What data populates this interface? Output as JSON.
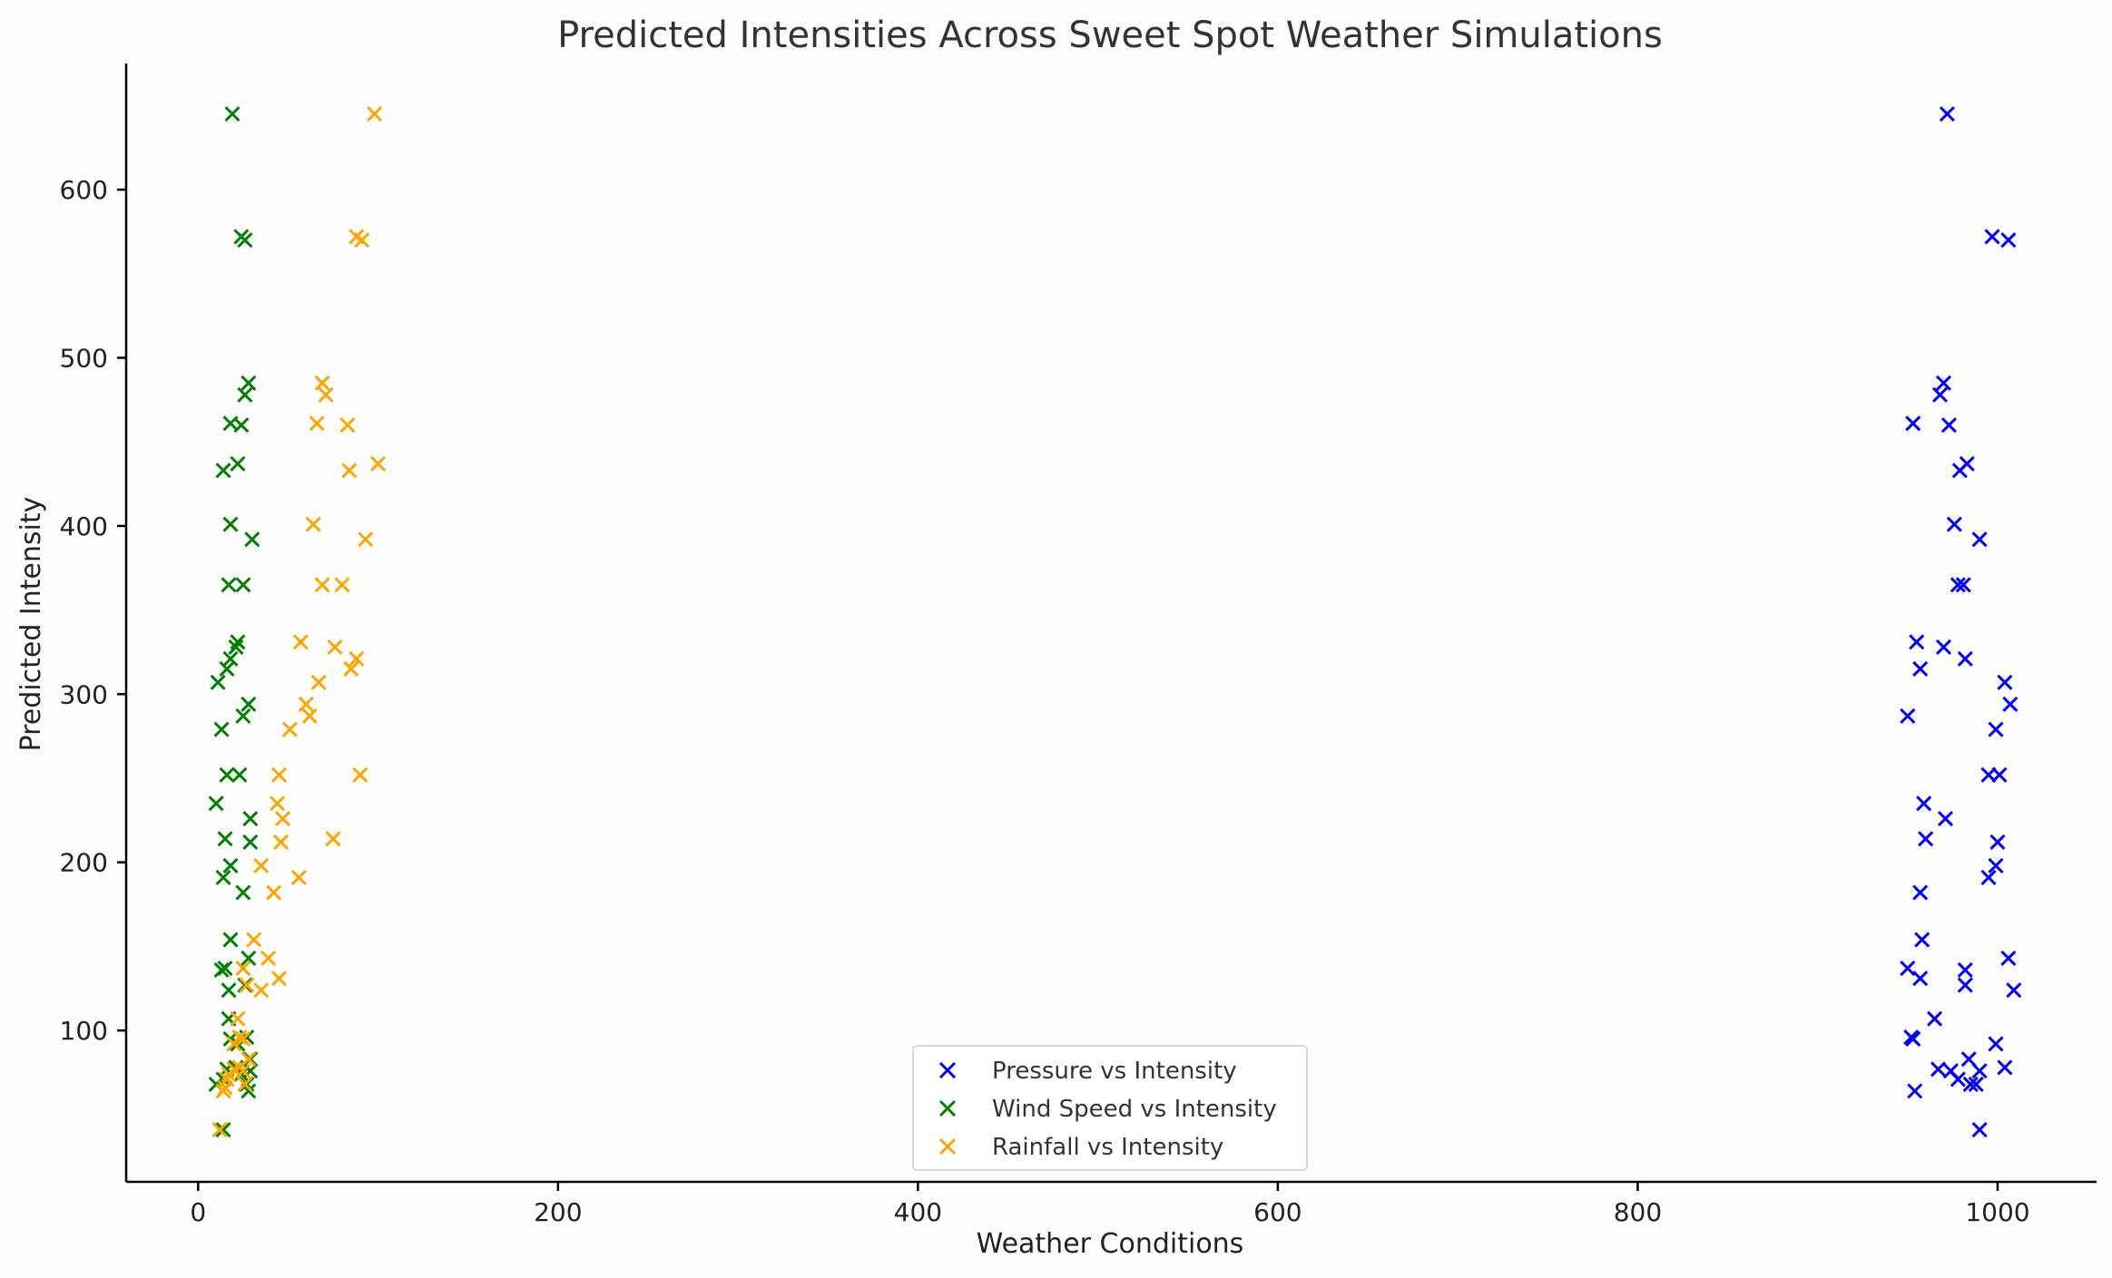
{
  "chart_data": {
    "type": "scatter",
    "title": "Predicted Intensities Across Sweet Spot Weather Simulations",
    "xlabel": "Weather Conditions",
    "ylabel": "Predicted Intensity",
    "xlim": [
      -40,
      1055
    ],
    "ylim": [
      10,
      675
    ],
    "xticks": [
      0,
      200,
      400,
      600,
      800,
      1000
    ],
    "yticks": [
      100,
      200,
      300,
      400,
      500,
      600
    ],
    "grid": false,
    "legend_position": "lower-center",
    "marker": "x",
    "series": [
      {
        "name": "Pressure vs Intensity",
        "color": "#0000ff",
        "points": [
          [
            972,
            645
          ],
          [
            997,
            572
          ],
          [
            1006,
            570
          ],
          [
            970,
            485
          ],
          [
            968,
            478
          ],
          [
            953,
            461
          ],
          [
            973,
            460
          ],
          [
            983,
            437
          ],
          [
            979,
            433
          ],
          [
            976,
            401
          ],
          [
            990,
            392
          ],
          [
            978,
            365
          ],
          [
            981,
            365
          ],
          [
            955,
            331
          ],
          [
            970,
            328
          ],
          [
            982,
            321
          ],
          [
            957,
            315
          ],
          [
            1004,
            307
          ],
          [
            1007,
            294
          ],
          [
            950,
            287
          ],
          [
            999,
            279
          ],
          [
            995,
            252
          ],
          [
            1001,
            252
          ],
          [
            959,
            235
          ],
          [
            971,
            226
          ],
          [
            960,
            214
          ],
          [
            1000,
            212
          ],
          [
            999,
            198
          ],
          [
            995,
            191
          ],
          [
            957,
            182
          ],
          [
            958,
            154
          ],
          [
            1006,
            143
          ],
          [
            950,
            137
          ],
          [
            982,
            136
          ],
          [
            957,
            131
          ],
          [
            982,
            127
          ],
          [
            1009,
            124
          ],
          [
            965,
            107
          ],
          [
            952,
            96
          ],
          [
            953,
            95
          ],
          [
            999,
            92
          ],
          [
            984,
            83
          ],
          [
            967,
            77
          ],
          [
            974,
            76
          ],
          [
            1004,
            78
          ],
          [
            990,
            76
          ],
          [
            978,
            71
          ],
          [
            985,
            68
          ],
          [
            988,
            68
          ],
          [
            954,
            64
          ],
          [
            990,
            41
          ]
        ]
      },
      {
        "name": "Wind Speed vs Intensity",
        "color": "#008000",
        "points": [
          [
            19,
            645
          ],
          [
            24,
            572
          ],
          [
            26,
            570
          ],
          [
            28,
            485
          ],
          [
            26,
            478
          ],
          [
            18,
            461
          ],
          [
            24,
            460
          ],
          [
            22,
            437
          ],
          [
            14,
            433
          ],
          [
            18,
            401
          ],
          [
            30,
            392
          ],
          [
            17,
            365
          ],
          [
            25,
            365
          ],
          [
            22,
            331
          ],
          [
            21,
            328
          ],
          [
            18,
            321
          ],
          [
            16,
            315
          ],
          [
            11,
            307
          ],
          [
            28,
            294
          ],
          [
            25,
            287
          ],
          [
            13,
            279
          ],
          [
            16,
            252
          ],
          [
            23,
            252
          ],
          [
            10,
            235
          ],
          [
            29,
            226
          ],
          [
            15,
            214
          ],
          [
            29,
            212
          ],
          [
            18,
            198
          ],
          [
            14,
            191
          ],
          [
            25,
            182
          ],
          [
            18,
            154
          ],
          [
            28,
            143
          ],
          [
            15,
            137
          ],
          [
            13,
            136
          ],
          [
            26,
            127
          ],
          [
            17,
            124
          ],
          [
            17,
            107
          ],
          [
            27,
            96
          ],
          [
            18,
            95
          ],
          [
            22,
            92
          ],
          [
            29,
            83
          ],
          [
            16,
            77
          ],
          [
            29,
            76
          ],
          [
            21,
            78
          ],
          [
            24,
            74
          ],
          [
            14,
            71
          ],
          [
            27,
            68
          ],
          [
            10,
            68
          ],
          [
            28,
            64
          ],
          [
            14,
            41
          ]
        ]
      },
      {
        "name": "Rainfall vs Intensity",
        "color": "#ffa500",
        "points": [
          [
            98,
            645
          ],
          [
            88,
            572
          ],
          [
            91,
            570
          ],
          [
            69,
            485
          ],
          [
            71,
            478
          ],
          [
            66,
            461
          ],
          [
            83,
            460
          ],
          [
            100,
            437
          ],
          [
            84,
            433
          ],
          [
            64,
            401
          ],
          [
            93,
            392
          ],
          [
            69,
            365
          ],
          [
            80,
            365
          ],
          [
            57,
            331
          ],
          [
            76,
            328
          ],
          [
            88,
            321
          ],
          [
            85,
            315
          ],
          [
            67,
            307
          ],
          [
            60,
            294
          ],
          [
            62,
            287
          ],
          [
            51,
            279
          ],
          [
            45,
            252
          ],
          [
            90,
            252
          ],
          [
            44,
            235
          ],
          [
            47,
            226
          ],
          [
            75,
            214
          ],
          [
            46,
            212
          ],
          [
            35,
            198
          ],
          [
            56,
            191
          ],
          [
            42,
            182
          ],
          [
            31,
            154
          ],
          [
            39,
            143
          ],
          [
            25,
            137
          ],
          [
            45,
            131
          ],
          [
            27,
            127
          ],
          [
            35,
            124
          ],
          [
            22,
            107
          ],
          [
            23,
            96
          ],
          [
            25,
            95
          ],
          [
            20,
            92
          ],
          [
            28,
            83
          ],
          [
            20,
            77
          ],
          [
            25,
            76
          ],
          [
            23,
            78
          ],
          [
            17,
            74
          ],
          [
            16,
            71
          ],
          [
            26,
            68
          ],
          [
            15,
            66
          ],
          [
            14,
            64
          ],
          [
            12,
            41
          ]
        ]
      }
    ]
  }
}
